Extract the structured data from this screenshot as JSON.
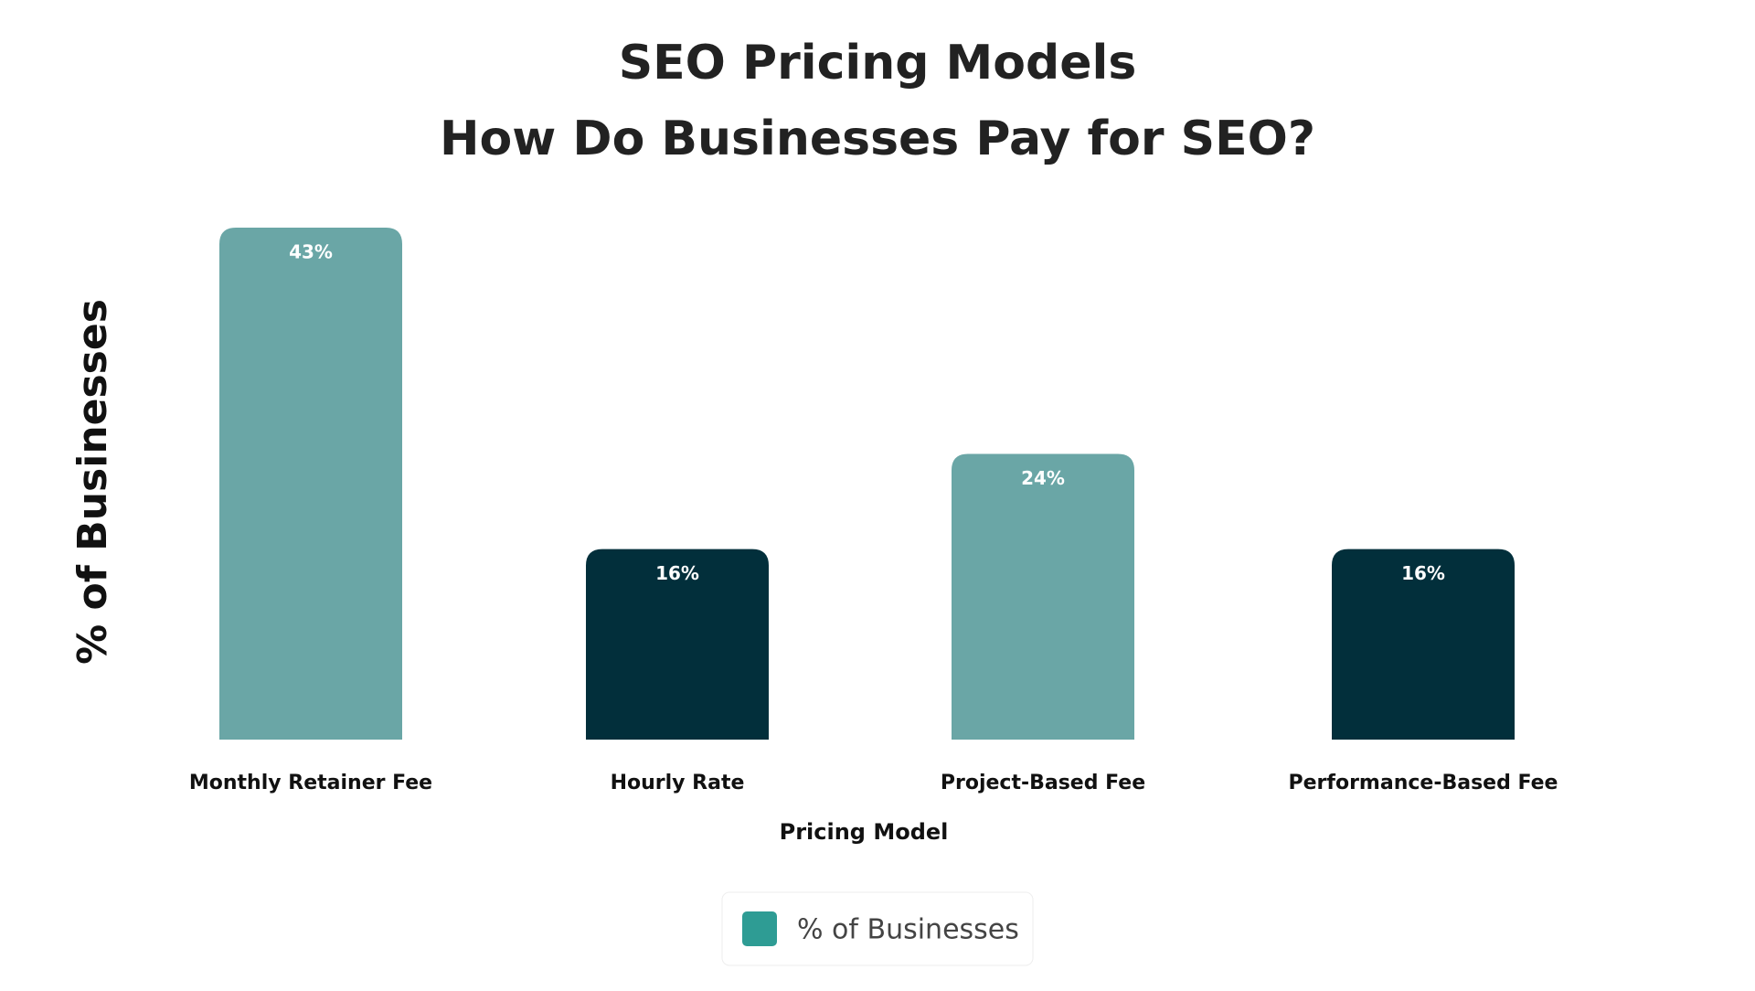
{
  "chart_data": {
    "type": "bar",
    "title": "SEO Pricing Models",
    "subtitle": "How Do Businesses Pay for SEO?",
    "x_label": "Pricing Model",
    "y_label": "% of Businesses",
    "categories": [
      "Monthly Retainer Fee",
      "Hourly Rate",
      "Project-Based Fee",
      "Performance-Based Fee"
    ],
    "series": [
      {
        "name": "% of Businesses",
        "color": "#2e9c94",
        "values": [
          43,
          16,
          24,
          16
        ],
        "value_labels": [
          "43%",
          "16%",
          "24%",
          "16%"
        ],
        "bar_colors": [
          "#6aa6a6",
          "#022f3b",
          "#6aa6a6",
          "#022f3b"
        ]
      }
    ],
    "ylim": [
      0,
      43
    ],
    "legend": "bottom"
  }
}
